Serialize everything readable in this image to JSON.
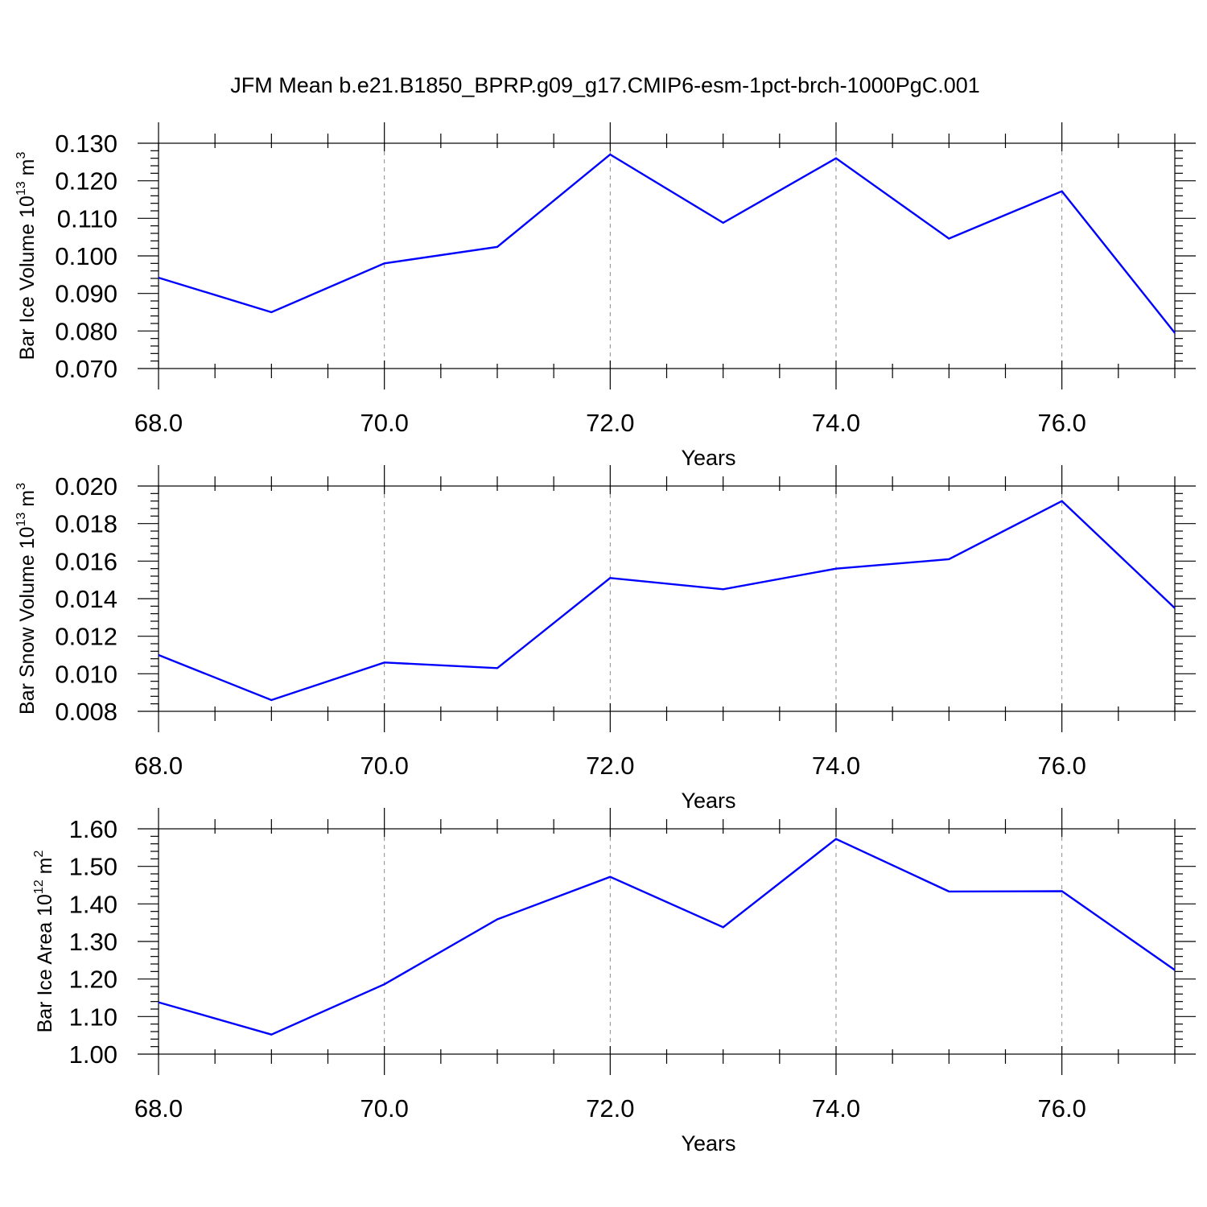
{
  "title": "JFM Mean b.e21.B1850_BPRP.g09_g17.CMIP6-esm-1pct-brch-1000PgC.001",
  "colors": {
    "line": "#0000ff",
    "grid": "#8a8a8a",
    "axes": "#000000"
  },
  "chart_data": [
    {
      "type": "line",
      "ylabel": {
        "text": "Bar Ice Volume 10",
        "exp": "13",
        "unit": " m",
        "unit_exp": "3"
      },
      "xlabel": "Years",
      "xlim": [
        68,
        77
      ],
      "ylim": [
        0.07,
        0.13
      ],
      "xticks": [
        68,
        70,
        72,
        74,
        76
      ],
      "xtick_labels": [
        "68.0",
        "70.0",
        "72.0",
        "74.0",
        "76.0"
      ],
      "yticks": [
        0.07,
        0.08,
        0.09,
        0.1,
        0.11,
        0.12,
        0.13
      ],
      "ytick_labels": [
        "0.070",
        "0.080",
        "0.090",
        "0.100",
        "0.110",
        "0.120",
        "0.130"
      ],
      "grid": "vertical-dashed-at-major-x",
      "x": [
        68,
        69,
        70,
        71,
        72,
        73,
        74,
        75,
        76,
        77
      ],
      "y": [
        0.0942,
        0.085,
        0.098,
        0.1024,
        0.127,
        0.1088,
        0.126,
        0.1046,
        0.1172,
        0.0795
      ]
    },
    {
      "type": "line",
      "ylabel": {
        "text": "Bar Snow Volume 10",
        "exp": "13",
        "unit": " m",
        "unit_exp": "3"
      },
      "xlabel": "Years",
      "xlim": [
        68,
        77
      ],
      "ylim": [
        0.008,
        0.02
      ],
      "xticks": [
        68,
        70,
        72,
        74,
        76
      ],
      "xtick_labels": [
        "68.0",
        "70.0",
        "72.0",
        "74.0",
        "76.0"
      ],
      "yticks": [
        0.008,
        0.01,
        0.012,
        0.014,
        0.016,
        0.018,
        0.02
      ],
      "ytick_labels": [
        "0.008",
        "0.010",
        "0.012",
        "0.014",
        "0.016",
        "0.018",
        "0.020"
      ],
      "grid": "vertical-dashed-at-major-x",
      "x": [
        68,
        69,
        70,
        71,
        72,
        73,
        74,
        75,
        76,
        77
      ],
      "y": [
        0.011,
        0.0086,
        0.0106,
        0.0103,
        0.0151,
        0.0145,
        0.0156,
        0.0161,
        0.0192,
        0.0135
      ]
    },
    {
      "type": "line",
      "ylabel": {
        "text": "Bar Ice Area 10",
        "exp": "12",
        "unit": " m",
        "unit_exp": "2"
      },
      "xlabel": "Years",
      "xlim": [
        68,
        77
      ],
      "ylim": [
        1.0,
        1.6
      ],
      "xticks": [
        68,
        70,
        72,
        74,
        76
      ],
      "xtick_labels": [
        "68.0",
        "70.0",
        "72.0",
        "74.0",
        "76.0"
      ],
      "yticks": [
        1.0,
        1.1,
        1.2,
        1.3,
        1.4,
        1.5,
        1.6
      ],
      "ytick_labels": [
        "1.00",
        "1.10",
        "1.20",
        "1.30",
        "1.40",
        "1.50",
        "1.60"
      ],
      "grid": "vertical-dashed-at-major-x",
      "x": [
        68,
        69,
        70,
        71,
        72,
        73,
        74,
        75,
        76,
        77
      ],
      "y": [
        1.138,
        1.052,
        1.186,
        1.359,
        1.472,
        1.338,
        1.573,
        1.433,
        1.434,
        1.224
      ]
    }
  ]
}
